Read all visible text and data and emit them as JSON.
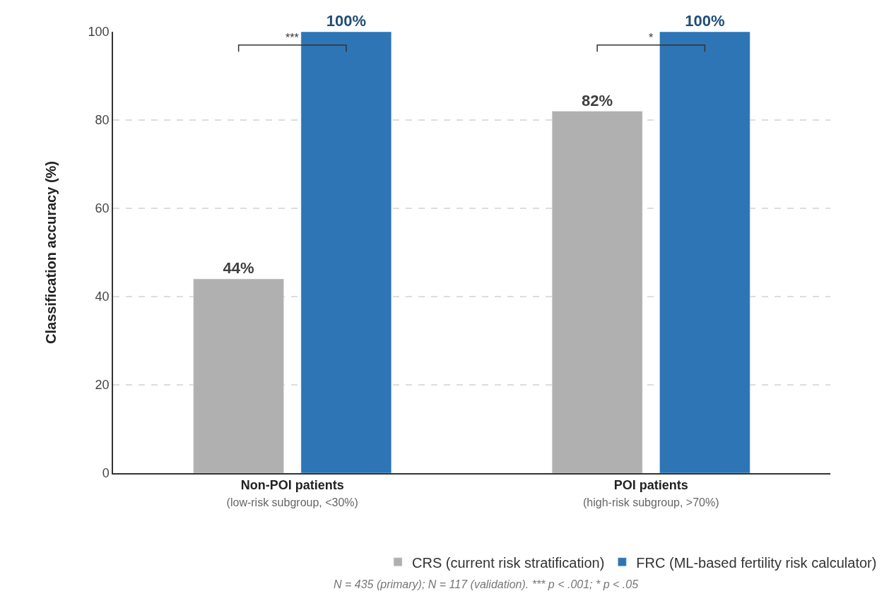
{
  "chart_data": {
    "type": "bar",
    "ylabel": "Classification accuracy (%)",
    "categories": [
      "Non-POI patients\n(low-risk subgroup, <30%)",
      "POI patients\n(high-risk subgroup, >70%)"
    ],
    "series": [
      {
        "name": "CRS (current risk stratification)",
        "color": "#b0b0b0",
        "values": [
          44,
          82
        ],
        "value_labels": [
          "44%",
          "82%"
        ]
      },
      {
        "name": "FRC (ML-based fertility risk calculator)",
        "color": "#2e75b6",
        "values": [
          100,
          100
        ],
        "value_labels": [
          "100%",
          "100%"
        ]
      }
    ],
    "ylim": [
      0,
      100
    ],
    "yticks": [
      0,
      20,
      40,
      60,
      80,
      100
    ],
    "grid": "y",
    "legend": "bottom",
    "annotations": [
      "***",
      "*",
      "N = 435 (primary); N = 117 (validation). *** p < .001; * p < .05"
    ]
  }
}
